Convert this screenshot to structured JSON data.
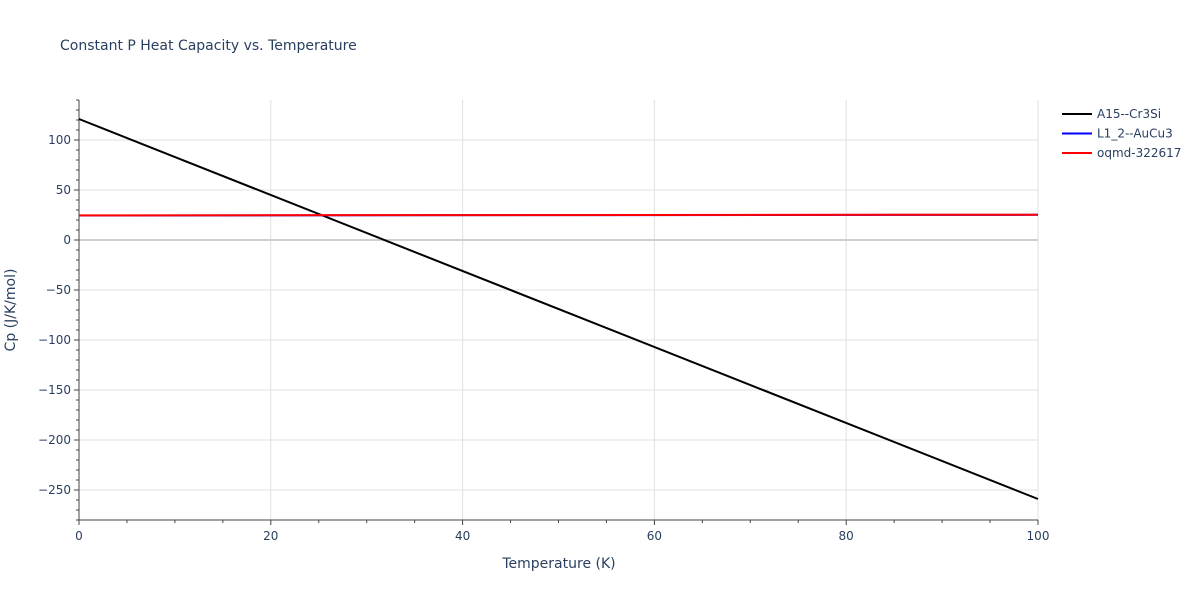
{
  "chart_data": {
    "type": "line",
    "title": "Constant P Heat Capacity vs. Temperature",
    "xlabel": "Temperature (K)",
    "ylabel": "Cp (J/K/mol)",
    "xlim": [
      0,
      100
    ],
    "ylim": [
      -280,
      140
    ],
    "x_ticks": [
      0,
      20,
      40,
      60,
      80,
      100
    ],
    "y_ticks": [
      100,
      50,
      0,
      -50,
      -100,
      -150,
      -200,
      -250
    ],
    "x_tick_labels": [
      "0",
      "20",
      "40",
      "60",
      "80",
      "100"
    ],
    "y_tick_labels": [
      "100",
      "50",
      "0",
      "−50",
      "−100",
      "−150",
      "−200",
      "−250"
    ],
    "grid": true,
    "legend_position": "top-right",
    "series": [
      {
        "name": "A15--Cr3Si",
        "color": "#000000",
        "x": [
          0,
          100
        ],
        "y": [
          121,
          -259
        ]
      },
      {
        "name": "L1_2--AuCu3",
        "color": "#0000ff",
        "x": [
          0,
          100
        ],
        "y": [
          24.5,
          25.2
        ]
      },
      {
        "name": "oqmd-322617",
        "color": "#ff0000",
        "x": [
          0,
          100
        ],
        "y": [
          24.6,
          25.3
        ]
      }
    ]
  }
}
